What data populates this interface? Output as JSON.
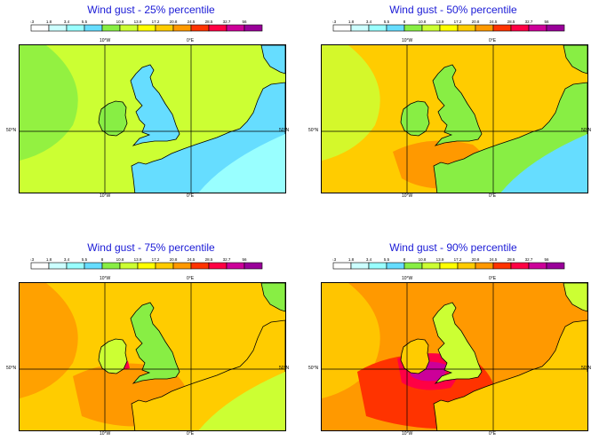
{
  "colorbar": {
    "ticks": [
      "0.3",
      "1.8",
      "3.4",
      "5.5",
      "8",
      "10.8",
      "13.9",
      "17.2",
      "20.8",
      "24.5",
      "28.5",
      "32.7",
      "56"
    ],
    "colors": [
      "#ffffff",
      "#ccffff",
      "#99ffff",
      "#66ddff",
      "#88ee44",
      "#ccff33",
      "#ffff00",
      "#ffcc00",
      "#ff9900",
      "#ff3300",
      "#ff0044",
      "#cc0099",
      "#990099"
    ]
  },
  "axes": {
    "lon_top_1": "10°W",
    "lon_top_2": "0°E",
    "lon_bottom_1": "10°W",
    "lon_bottom_2": "0°E",
    "lat_left": "50°N",
    "lat_right": "50°N"
  },
  "panels": [
    {
      "title": "Wind gust - 25% percentile"
    },
    {
      "title": "Wind gust - 50% percentile"
    },
    {
      "title": "Wind gust - 75% percentile"
    },
    {
      "title": "Wind gust - 90% percentile"
    }
  ]
}
